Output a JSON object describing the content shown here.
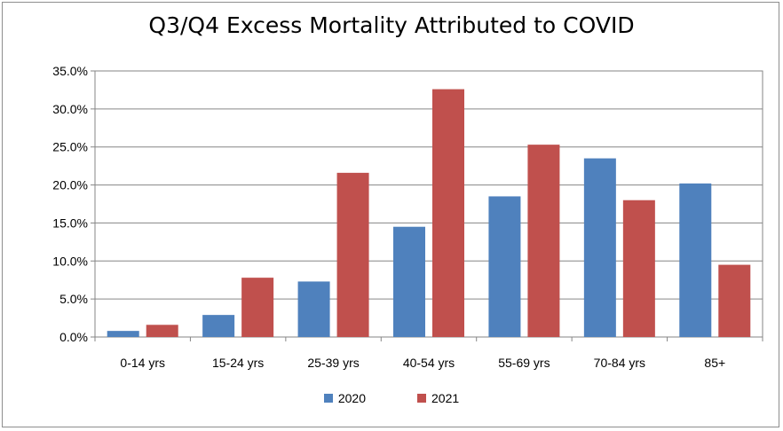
{
  "chart_data": {
    "type": "bar",
    "title": "Q3/Q4 Excess Mortality Attributed to COVID",
    "categories": [
      "0-14 yrs",
      "15-24 yrs",
      "25-39 yrs",
      "40-54 yrs",
      "55-69 yrs",
      "70-84 yrs",
      "85+"
    ],
    "series": [
      {
        "name": "2020",
        "color": "#4f81bd",
        "values": [
          0.8,
          2.9,
          7.3,
          14.5,
          18.5,
          23.5,
          20.2
        ]
      },
      {
        "name": "2021",
        "color": "#c0504d",
        "values": [
          1.6,
          7.8,
          21.6,
          32.6,
          25.3,
          18.0,
          9.5
        ]
      }
    ],
    "ylim": [
      0,
      35
    ],
    "yticks": [
      "0.0%",
      "5.0%",
      "10.0%",
      "15.0%",
      "20.0%",
      "25.0%",
      "30.0%",
      "35.0%"
    ],
    "xlabel": "",
    "ylabel": "",
    "grid": true,
    "legend_position": "bottom"
  }
}
